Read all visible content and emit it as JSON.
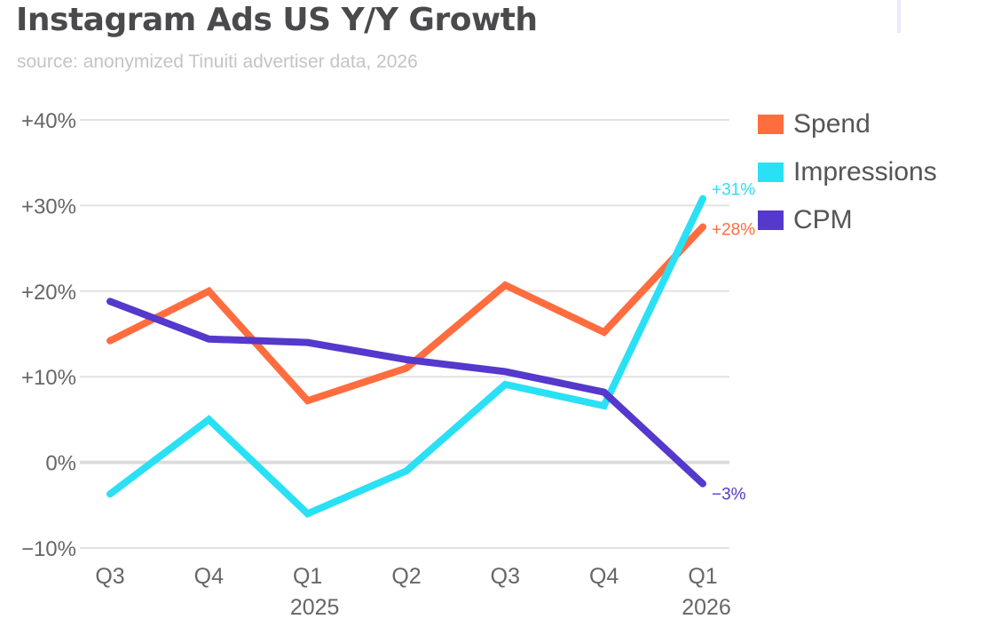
{
  "header": {
    "title": "Instagram Ads US Y/Y Growth",
    "subtitle": "source: anonymized Tinuiti advertiser data, 2026"
  },
  "legend": [
    {
      "name": "Spend",
      "color": "#ff6d3f"
    },
    {
      "name": "Impressions",
      "color": "#2ae0f5"
    },
    {
      "name": "CPM",
      "color": "#5538cc"
    }
  ],
  "chart_data": {
    "type": "line",
    "title": "Instagram Ads US Y/Y Growth",
    "subtitle": "source: anonymized Tinuiti advertiser data, 2026",
    "xlabel": "",
    "ylabel": "",
    "categories": [
      "Q3",
      "Q4",
      "Q1",
      "Q2",
      "Q3",
      "Q4",
      "Q1"
    ],
    "category_years": [
      "",
      "",
      "2025",
      "",
      "",
      "",
      "2026"
    ],
    "ylim": [
      -10,
      40
    ],
    "yticks": [
      -10,
      0,
      10,
      20,
      30,
      40
    ],
    "ytick_labels": [
      "−10%",
      "0%",
      "+10%",
      "+20%",
      "+30%",
      "+40%"
    ],
    "grid": true,
    "legend_position": "right",
    "series": [
      {
        "name": "Spend",
        "color": "#ff6d3f",
        "values": [
          14.2,
          20.0,
          7.2,
          11.0,
          20.7,
          15.2,
          27.5
        ],
        "end_label": "+28%"
      },
      {
        "name": "Impressions",
        "color": "#2ae0f5",
        "values": [
          -3.7,
          5.0,
          -6.0,
          -1.0,
          9.1,
          6.6,
          30.8
        ],
        "end_label": "+31%"
      },
      {
        "name": "CPM",
        "color": "#5538cc",
        "values": [
          18.8,
          14.4,
          14.0,
          12.0,
          10.6,
          8.2,
          -2.5
        ],
        "end_label": "−3%"
      }
    ]
  }
}
